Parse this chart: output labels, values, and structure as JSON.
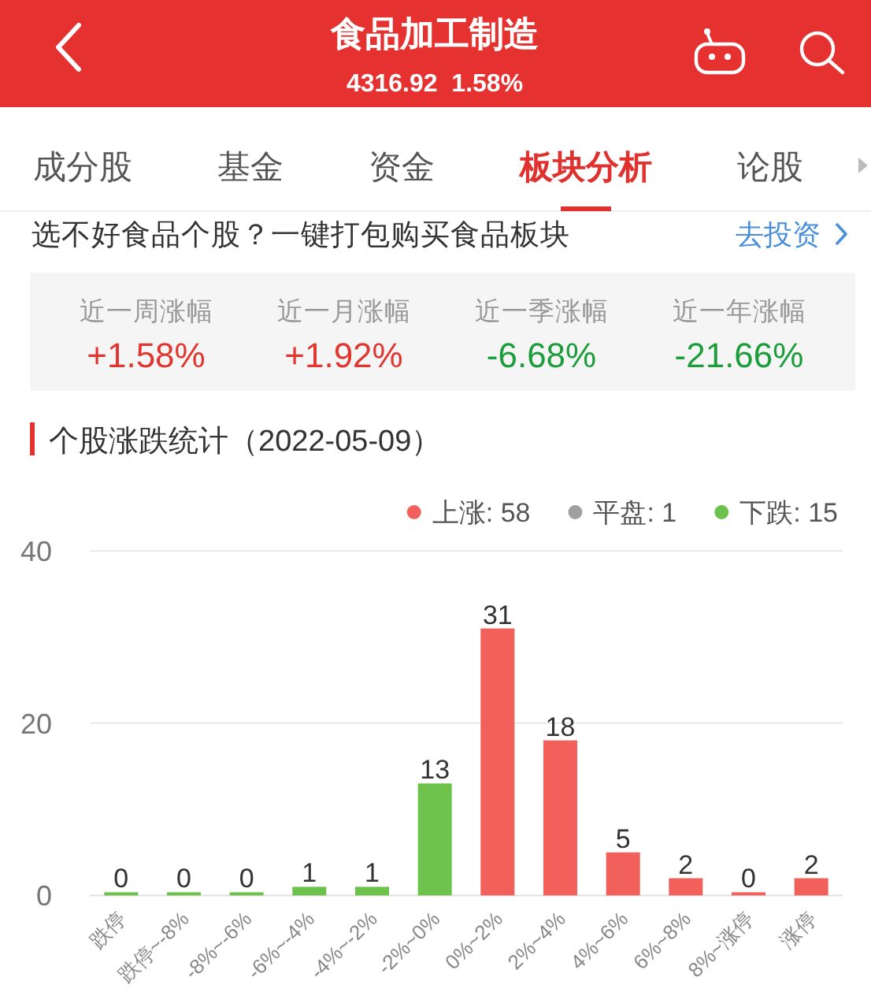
{
  "chart_data": [
    {
      "type": "other",
      "title": "食品加工制造",
      "subtitle": "4316.92  1.58%",
      "categories": [
        "成分股",
        "基金",
        "资金",
        "板块分析",
        "论股"
      ],
      "colors": [
        "#555555",
        "#555555",
        "#555555",
        "#e0312f",
        "#555555"
      ],
      "annotations": [
        "选不好食品个股？一键打包购买食品板块",
        "去投资"
      ]
    },
    {
      "type": "other",
      "categories": [
        "近一周涨幅",
        "近一月涨幅",
        "近一季涨幅",
        "近一年涨幅"
      ],
      "value_labels": [
        "+1.58%",
        "+1.92%",
        "-6.68%",
        "-21.66%"
      ],
      "colors": [
        "#e0362f",
        "#e0362f",
        "#1c9d3c",
        "#1c9d3c"
      ]
    },
    {
      "type": "bar",
      "title": "个股涨跌统计（2022-05-09）",
      "categories": [
        "跌停",
        "跌停~-8%",
        "-8%~-6%",
        "-6%~-4%",
        "-4%~-2%",
        "-2%~0%",
        "0%~2%",
        "2%~4%",
        "4%~6%",
        "6%~8%",
        "8%~涨停",
        "涨停"
      ],
      "series": [
        {
          "name": "上涨: 58",
          "color": "#f1605a",
          "values": [
            null,
            null,
            null,
            null,
            null,
            null,
            31,
            18,
            5,
            2,
            0,
            2
          ]
        },
        {
          "name": "平盘: 1",
          "color": "#a0a0a0",
          "values": [
            null,
            null,
            null,
            null,
            null,
            null,
            null,
            null,
            null,
            null,
            null,
            null
          ]
        },
        {
          "name": "下跌: 15",
          "color": "#6cc24a",
          "values": [
            0,
            0,
            0,
            1,
            1,
            13,
            null,
            null,
            null,
            null,
            null,
            null
          ]
        }
      ],
      "stacked": true,
      "ylim": [
        0,
        40
      ],
      "yticks": [
        0,
        20,
        40
      ],
      "grid": "y",
      "legend": "top right",
      "data_labels": true
    }
  ]
}
